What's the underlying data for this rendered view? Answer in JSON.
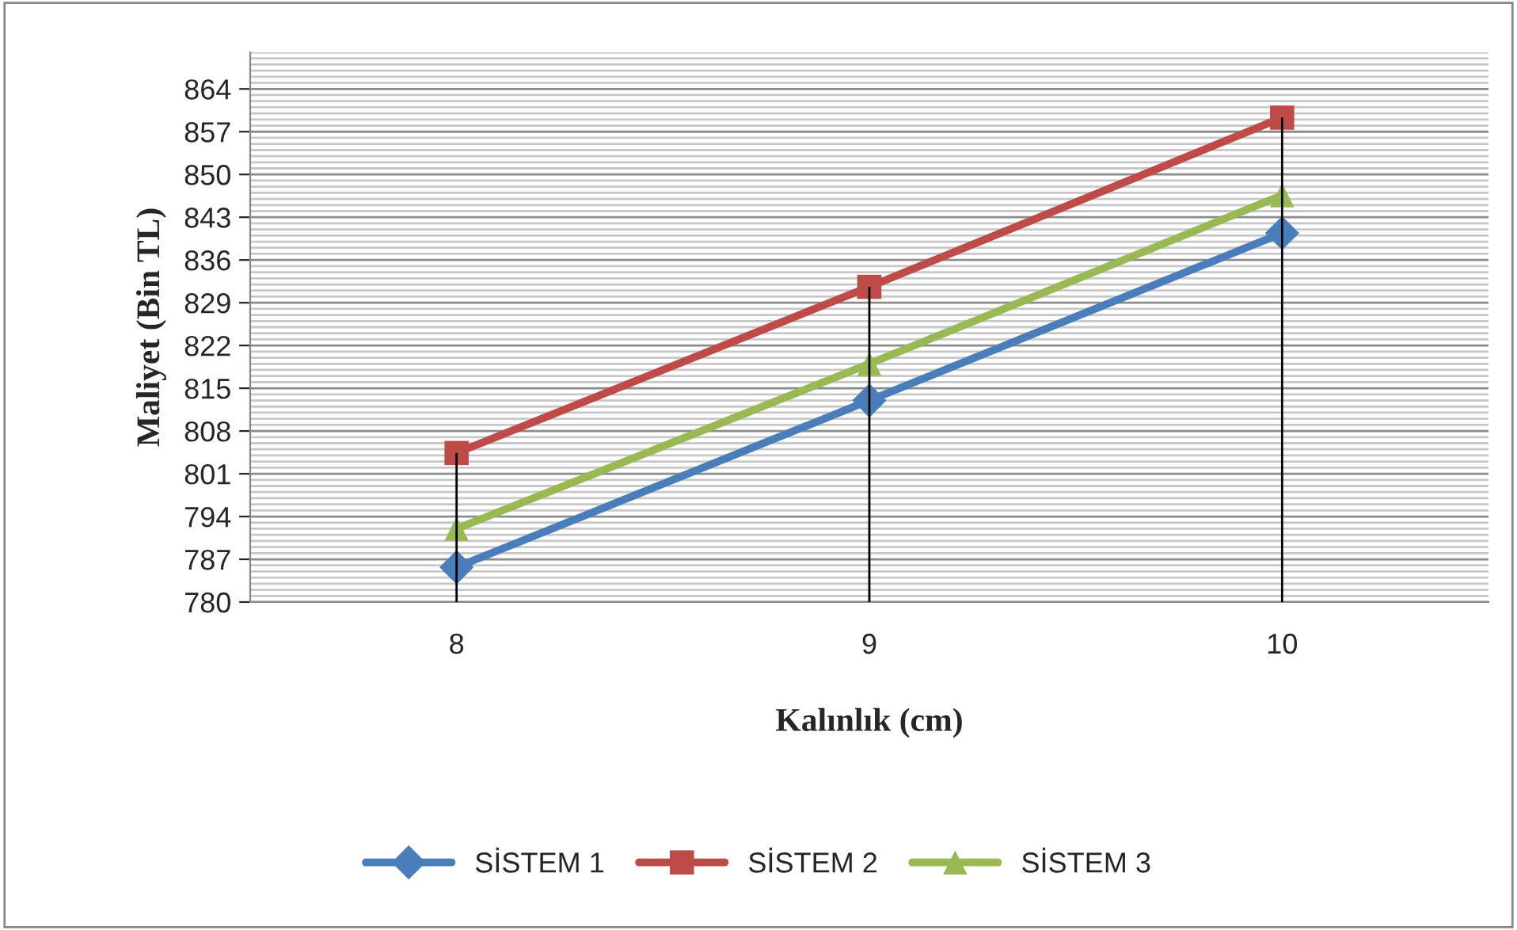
{
  "chart_data": {
    "type": "line",
    "xlabel": "Kalınlık (cm)",
    "ylabel": "Maliyet (Bin TL)",
    "categories": [
      "8",
      "9",
      "10"
    ],
    "series": [
      {
        "name": "SİSTEM 1",
        "color": "#4a7ebb",
        "marker": "diamond",
        "values": [
          785.7,
          813,
          840.4
        ]
      },
      {
        "name": "SİSTEM 2",
        "color": "#be4b48",
        "marker": "square",
        "values": [
          804.4,
          831.6,
          859.3
        ],
        "errors": [
          [
            780,
            804.4
          ],
          [
            780,
            831.6
          ],
          [
            780,
            859.3
          ]
        ]
      },
      {
        "name": "SİSTEM 3",
        "color": "#98b954",
        "marker": "triangle",
        "values": [
          792,
          819,
          846.6
        ]
      }
    ],
    "ylim": [
      780,
      870
    ],
    "yticks": [
      780,
      787,
      794,
      801,
      808,
      815,
      822,
      829,
      836,
      843,
      850,
      857,
      864
    ],
    "grid": "y",
    "legend": "bottom",
    "line_style": "solid"
  }
}
